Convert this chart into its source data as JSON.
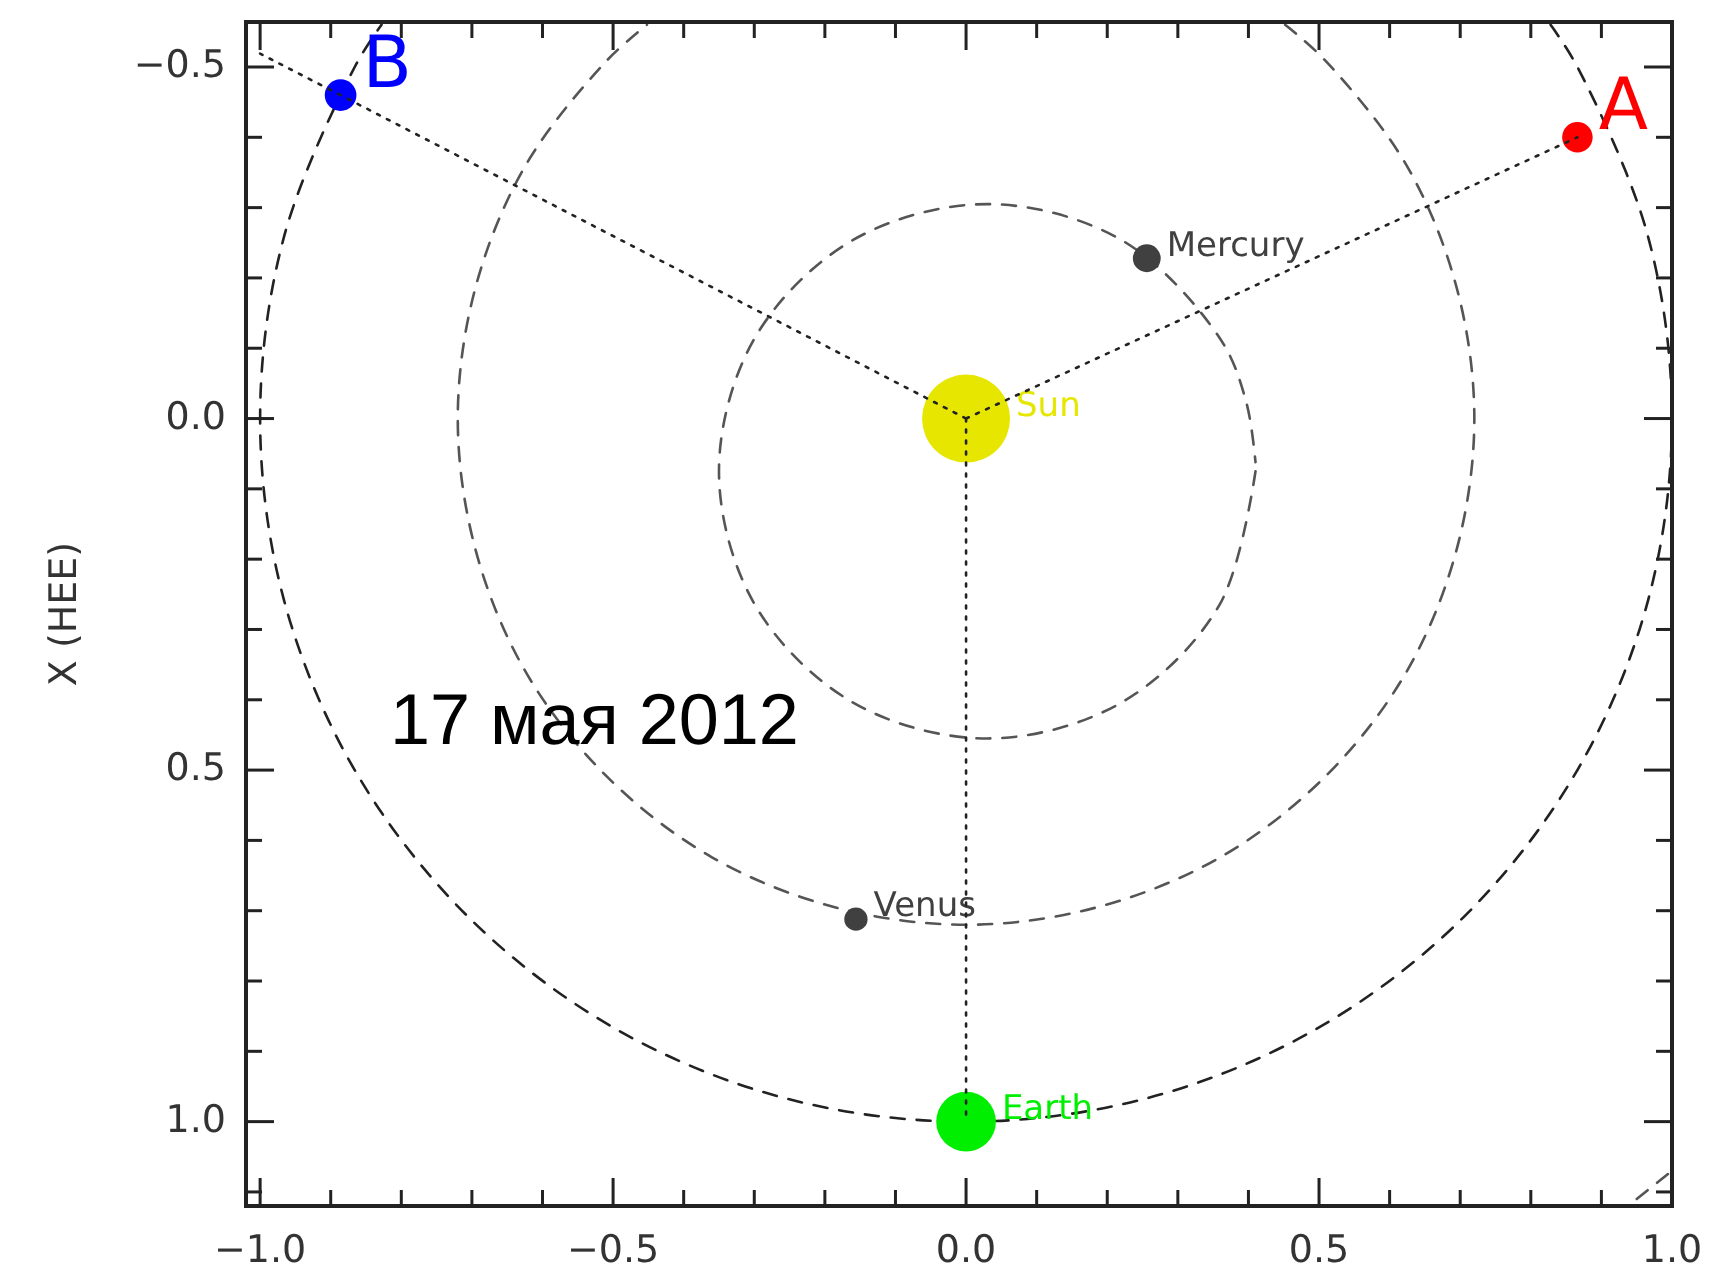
{
  "chart_data": {
    "type": "bubble",
    "ylabel": "X (HEE)",
    "annotations": [
      "17 мая 2012"
    ],
    "xlim": [
      -1.02,
      1.0
    ],
    "ylim": [
      1.12,
      -0.564
    ],
    "xticks": [
      {
        "value": -1,
        "label": "−1.0"
      },
      {
        "value": -0.9,
        "label": null
      },
      {
        "value": -0.8,
        "label": null
      },
      {
        "value": -0.7,
        "label": null
      },
      {
        "value": -0.6,
        "label": null
      },
      {
        "value": -0.5,
        "label": "−0.5"
      },
      {
        "value": -0.4,
        "label": null
      },
      {
        "value": -0.3,
        "label": null
      },
      {
        "value": -0.2,
        "label": null
      },
      {
        "value": -0.1,
        "label": null
      },
      {
        "value": 0,
        "label": "0.0"
      },
      {
        "value": 0.1,
        "label": null
      },
      {
        "value": 0.2,
        "label": null
      },
      {
        "value": 0.3,
        "label": null
      },
      {
        "value": 0.4,
        "label": null
      },
      {
        "value": 0.5,
        "label": "0.5"
      },
      {
        "value": 0.6,
        "label": null
      },
      {
        "value": 0.7,
        "label": null
      },
      {
        "value": 0.8,
        "label": null
      },
      {
        "value": 0.9,
        "label": null
      },
      {
        "value": 1,
        "label": "1.0"
      }
    ],
    "yticks": [
      {
        "value": -0.5,
        "label": "−0.5"
      },
      {
        "value": -0.4,
        "label": null
      },
      {
        "value": -0.3,
        "label": null
      },
      {
        "value": -0.2,
        "label": null
      },
      {
        "value": -0.1,
        "label": null
      },
      {
        "value": 0,
        "label": "0.0"
      },
      {
        "value": 0.1,
        "label": null
      },
      {
        "value": 0.2,
        "label": null
      },
      {
        "value": 0.3,
        "label": null
      },
      {
        "value": 0.4,
        "label": null
      },
      {
        "value": 0.5,
        "label": "0.5"
      },
      {
        "value": 0.6,
        "label": null
      },
      {
        "value": 0.7,
        "label": null
      },
      {
        "value": 0.8,
        "label": null
      },
      {
        "value": 0.9,
        "label": null
      },
      {
        "value": 1,
        "label": "1.0"
      },
      {
        "value": 1.1,
        "label": null
      }
    ],
    "series": [
      {
        "type": "line",
        "color": "#555555",
        "line_style": "dashed",
        "x": [
          0.41,
          0.359,
          0.22,
          0.03,
          -0.16,
          -0.299,
          -0.35,
          -0.299,
          -0.16,
          0.03,
          0.22,
          0.359,
          0.397,
          0.41
        ],
        "values": [
          0.075,
          0.265,
          0.404,
          0.455,
          0.404,
          0.265,
          0.075,
          -0.115,
          -0.254,
          -0.305,
          -0.254,
          -0.115,
          -0.023,
          0.062
        ]
      },
      {
        "type": "line",
        "color": "#555555",
        "line_style": "dashed",
        "x": [
          0.452,
          0.509,
          0.624,
          0.695,
          0.72,
          0.695,
          0.624,
          0.509,
          0.36,
          0.186,
          0,
          -0.186,
          -0.36,
          -0.509,
          -0.624,
          -0.695,
          -0.72,
          -0.695,
          -0.624,
          -0.509,
          -0.452
        ],
        "values": [
          -0.56,
          -0.509,
          -0.36,
          -0.186,
          0,
          0.186,
          0.36,
          0.509,
          0.624,
          0.695,
          0.72,
          0.695,
          0.624,
          0.509,
          0.36,
          0.186,
          0,
          -0.186,
          -0.36,
          -0.509,
          -0.56
        ]
      },
      {
        "type": "line",
        "color": "#222222",
        "line_style": "dashed",
        "x": [
          0.828,
          0.866,
          0.966,
          1,
          0.966,
          0.866,
          0.707,
          0.5,
          0.259,
          0,
          -0.259,
          -0.5,
          -0.707,
          -0.866,
          -0.966,
          -1,
          -0.966,
          -0.866,
          -0.828
        ],
        "values": [
          -0.56,
          -0.5,
          -0.259,
          0,
          0.259,
          0.5,
          0.707,
          0.866,
          0.966,
          1,
          0.966,
          0.866,
          0.707,
          0.5,
          0.259,
          0,
          -0.259,
          -0.5,
          -0.56
        ]
      },
      {
        "type": "line",
        "color": "#555555",
        "line_style": "dashed",
        "x": [
          0.95,
          1.0
        ],
        "values": [
          1.11,
          1.07
        ]
      },
      {
        "name": "Sun",
        "color": "#e6e600",
        "x": [
          0
        ],
        "values": [
          0
        ],
        "sizes": [
          1
        ]
      },
      {
        "name": "Mercury",
        "color": "#404040",
        "x": [
          0.256
        ],
        "values": [
          -0.228
        ],
        "sizes": [
          0.1
        ]
      },
      {
        "name": "Venus",
        "color": "#404040",
        "x": [
          -0.156
        ],
        "values": [
          0.712
        ],
        "sizes": [
          0.07
        ]
      },
      {
        "name": "Earth",
        "color": "#00ee00",
        "x": [
          0
        ],
        "values": [
          1
        ],
        "sizes": [
          0.46
        ]
      },
      {
        "name": "A",
        "color": "#ff0000",
        "x": [
          0.866
        ],
        "values": [
          -0.4
        ],
        "sizes": [
          0.12
        ]
      },
      {
        "name": "B",
        "color": "#0000ff",
        "x": [
          -0.886
        ],
        "values": [
          -0.46
        ],
        "sizes": [
          0.13
        ]
      },
      {
        "type": "line",
        "color": "#222222",
        "line_style": "dotted",
        "x": [
          0,
          0.866
        ],
        "values": [
          0,
          -0.4
        ]
      },
      {
        "type": "line",
        "color": "#222222",
        "line_style": "dotted",
        "x": [
          0,
          -0.886,
          -1.0
        ],
        "values": [
          0,
          -0.46,
          -0.519
        ]
      },
      {
        "type": "line",
        "color": "#222222",
        "line_style": "dotted",
        "x": [
          0,
          0
        ],
        "values": [
          0,
          1
        ]
      }
    ]
  }
}
